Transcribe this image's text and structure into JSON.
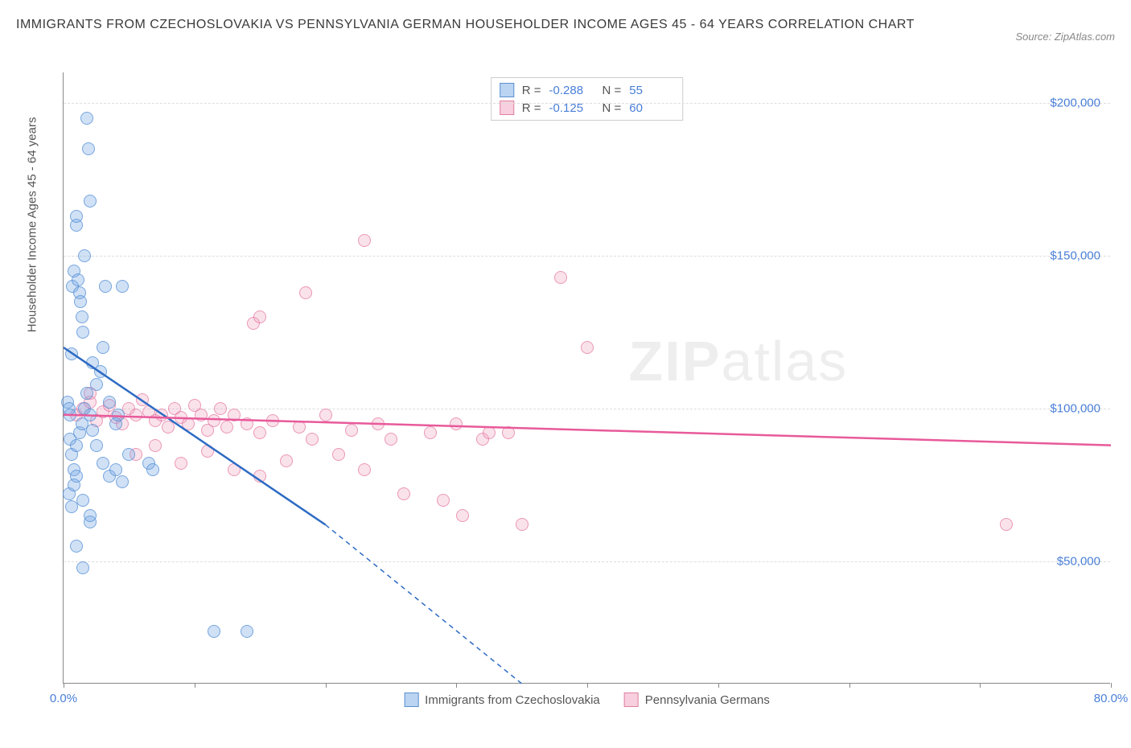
{
  "title": "IMMIGRANTS FROM CZECHOSLOVAKIA VS PENNSYLVANIA GERMAN HOUSEHOLDER INCOME AGES 45 - 64 YEARS CORRELATION CHART",
  "source": "Source: ZipAtlas.com",
  "watermark": {
    "bold": "ZIP",
    "light": "atlas"
  },
  "chart": {
    "type": "scatter",
    "ylabel": "Householder Income Ages 45 - 64 years",
    "xlim": [
      0,
      80
    ],
    "ylim": [
      10000,
      210000
    ],
    "background_color": "#ffffff",
    "grid_color": "#dddddd",
    "axis_color": "#888888",
    "label_color": "#4a7fd8",
    "yticks": [
      {
        "v": 50000,
        "label": "$50,000"
      },
      {
        "v": 100000,
        "label": "$100,000"
      },
      {
        "v": 150000,
        "label": "$150,000"
      },
      {
        "v": 200000,
        "label": "$200,000"
      }
    ],
    "xticks": [
      {
        "v": 0,
        "label": "0.0%"
      },
      {
        "v": 10,
        "label": ""
      },
      {
        "v": 20,
        "label": ""
      },
      {
        "v": 30,
        "label": ""
      },
      {
        "v": 40,
        "label": ""
      },
      {
        "v": 50,
        "label": ""
      },
      {
        "v": 60,
        "label": ""
      },
      {
        "v": 70,
        "label": ""
      },
      {
        "v": 80,
        "label": "80.0%"
      }
    ],
    "stats": [
      {
        "series": "blue",
        "R_label": "R =",
        "R": "-0.288",
        "N_label": "N =",
        "N": "55"
      },
      {
        "series": "pink",
        "R_label": "R =",
        "R": "-0.125",
        "N_label": "N =",
        "N": "60"
      }
    ],
    "legend": [
      {
        "series": "blue",
        "label": "Immigrants from Czechoslovakia"
      },
      {
        "series": "pink",
        "label": "Pennsylvania Germans"
      }
    ],
    "series": {
      "blue": {
        "color_fill": "rgba(120,170,230,0.35)",
        "color_stroke": "#508cd2",
        "trend": {
          "x1": 0,
          "y1": 120000,
          "x2": 20,
          "y2": 62000,
          "dash_after_x": 20,
          "dash_to_x": 35,
          "dash_to_y": 10000,
          "color": "#2d6bc4",
          "width": 2.5
        },
        "points": [
          [
            0.3,
            102000
          ],
          [
            0.4,
            100000
          ],
          [
            0.5,
            98000
          ],
          [
            0.6,
            118000
          ],
          [
            0.7,
            140000
          ],
          [
            0.8,
            145000
          ],
          [
            1.0,
            160000
          ],
          [
            1.0,
            163000
          ],
          [
            1.1,
            142000
          ],
          [
            1.2,
            138000
          ],
          [
            1.3,
            135000
          ],
          [
            1.4,
            130000
          ],
          [
            1.5,
            125000
          ],
          [
            1.6,
            150000
          ],
          [
            1.8,
            195000
          ],
          [
            1.9,
            185000
          ],
          [
            2.0,
            168000
          ],
          [
            2.2,
            115000
          ],
          [
            0.5,
            90000
          ],
          [
            0.6,
            85000
          ],
          [
            0.8,
            80000
          ],
          [
            1.0,
            88000
          ],
          [
            1.2,
            92000
          ],
          [
            1.4,
            95000
          ],
          [
            1.6,
            100000
          ],
          [
            1.8,
            105000
          ],
          [
            2.0,
            98000
          ],
          [
            2.2,
            93000
          ],
          [
            2.5,
            108000
          ],
          [
            2.8,
            112000
          ],
          [
            3.0,
            120000
          ],
          [
            3.2,
            140000
          ],
          [
            3.5,
            102000
          ],
          [
            4.0,
            95000
          ],
          [
            4.2,
            98000
          ],
          [
            4.5,
            140000
          ],
          [
            0.4,
            72000
          ],
          [
            0.6,
            68000
          ],
          [
            0.8,
            75000
          ],
          [
            1.0,
            78000
          ],
          [
            1.5,
            70000
          ],
          [
            2.0,
            63000
          ],
          [
            2.5,
            88000
          ],
          [
            3.0,
            82000
          ],
          [
            3.5,
            78000
          ],
          [
            4.0,
            80000
          ],
          [
            4.5,
            76000
          ],
          [
            5.0,
            85000
          ],
          [
            1.0,
            55000
          ],
          [
            1.5,
            48000
          ],
          [
            2.0,
            65000
          ],
          [
            6.5,
            82000
          ],
          [
            6.8,
            80000
          ],
          [
            11.5,
            27000
          ],
          [
            14.0,
            27000
          ]
        ]
      },
      "pink": {
        "color_fill": "rgba(240,160,190,0.3)",
        "color_stroke": "#e670a0",
        "trend": {
          "x1": 0,
          "y1": 98000,
          "x2": 80,
          "y2": 88000,
          "color": "#e85a9a",
          "width": 2.5
        },
        "points": [
          [
            1.0,
            98000
          ],
          [
            1.5,
            100000
          ],
          [
            2.0,
            102000
          ],
          [
            2.5,
            96000
          ],
          [
            3.0,
            99000
          ],
          [
            3.5,
            101000
          ],
          [
            4.0,
            97000
          ],
          [
            4.5,
            95000
          ],
          [
            5.0,
            100000
          ],
          [
            5.5,
            98000
          ],
          [
            6.0,
            103000
          ],
          [
            6.5,
            99000
          ],
          [
            7.0,
            96000
          ],
          [
            7.5,
            98000
          ],
          [
            8.0,
            94000
          ],
          [
            8.5,
            100000
          ],
          [
            9.0,
            97000
          ],
          [
            9.5,
            95000
          ],
          [
            10.0,
            101000
          ],
          [
            10.5,
            98000
          ],
          [
            11.0,
            93000
          ],
          [
            11.5,
            96000
          ],
          [
            12.0,
            100000
          ],
          [
            12.5,
            94000
          ],
          [
            13.0,
            98000
          ],
          [
            14.0,
            95000
          ],
          [
            15.0,
            92000
          ],
          [
            16.0,
            96000
          ],
          [
            17.0,
            83000
          ],
          [
            18.0,
            94000
          ],
          [
            19.0,
            90000
          ],
          [
            20.0,
            98000
          ],
          [
            21.0,
            85000
          ],
          [
            22.0,
            93000
          ],
          [
            23.0,
            80000
          ],
          [
            24.0,
            95000
          ],
          [
            25.0,
            90000
          ],
          [
            26.0,
            72000
          ],
          [
            28.0,
            92000
          ],
          [
            29.0,
            70000
          ],
          [
            30.0,
            95000
          ],
          [
            30.5,
            65000
          ],
          [
            32.0,
            90000
          ],
          [
            32.5,
            92000
          ],
          [
            34.0,
            92000
          ],
          [
            35.0,
            62000
          ],
          [
            38.0,
            143000
          ],
          [
            40.0,
            120000
          ],
          [
            14.5,
            128000
          ],
          [
            15.0,
            130000
          ],
          [
            18.5,
            138000
          ],
          [
            23.0,
            155000
          ],
          [
            5.5,
            85000
          ],
          [
            7.0,
            88000
          ],
          [
            9.0,
            82000
          ],
          [
            11.0,
            86000
          ],
          [
            13.0,
            80000
          ],
          [
            15.0,
            78000
          ],
          [
            72.0,
            62000
          ],
          [
            2.0,
            105000
          ]
        ]
      }
    }
  }
}
